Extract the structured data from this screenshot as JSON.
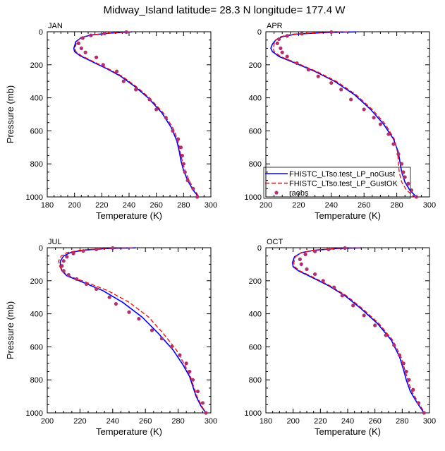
{
  "title": "Midway_Island  latitude= 28.3 N longitude= 177.4 W",
  "chart_data": [
    {
      "type": "line",
      "panel": "JAN",
      "xlabel": "Temperature (K)",
      "ylabel": "Pressure (mb)",
      "xlim": [
        180,
        300
      ],
      "ylim": [
        1000,
        0
      ],
      "xticks": [
        180,
        200,
        220,
        240,
        260,
        280,
        300
      ],
      "yticks": [
        0,
        200,
        400,
        600,
        800,
        1000
      ],
      "series": [
        {
          "name": "FHISTC_LTso.test_LP_noGust",
          "style": "solid",
          "color": "#0000ff",
          "x": [
            242,
            226,
            212,
            205,
            201,
            199.5,
            200,
            204,
            214,
            224,
            234,
            244,
            254,
            264,
            271,
            275,
            277,
            278,
            280,
            283,
            287,
            291
          ],
          "y": [
            1,
            8,
            20,
            35,
            60,
            100,
            120,
            145,
            185,
            225,
            270,
            330,
            400,
            490,
            580,
            660,
            730,
            780,
            840,
            900,
            960,
            1000
          ]
        },
        {
          "name": "FHISTC_LTso.test_LP_GustOK",
          "style": "dashed",
          "color": "#ff0000",
          "x": [
            241,
            225,
            211,
            205,
            201.5,
            200.5,
            201,
            205,
            215,
            225,
            235,
            245,
            255,
            265,
            272,
            276,
            277.5,
            279,
            281,
            284,
            288,
            291.5
          ],
          "y": [
            1,
            8,
            20,
            35,
            60,
            100,
            120,
            145,
            185,
            225,
            270,
            330,
            400,
            490,
            580,
            660,
            730,
            780,
            840,
            900,
            960,
            1000
          ]
        },
        {
          "name": "raobs",
          "style": "markers",
          "color": "#b03070",
          "x": [
            238,
            222,
            212,
            206,
            203,
            205,
            208,
            216,
            221,
            231,
            236,
            245,
            255,
            260,
            267,
            272,
            276,
            278,
            279,
            280,
            281,
            283,
            287,
            290
          ],
          "y": [
            2,
            10,
            22,
            38,
            70,
            100,
            125,
            155,
            200,
            240,
            300,
            350,
            410,
            470,
            520,
            600,
            650,
            700,
            750,
            800,
            850,
            900,
            950,
            1000
          ]
        }
      ]
    },
    {
      "type": "line",
      "panel": "APR",
      "xlabel": "Temperature (K)",
      "ylabel": "",
      "xlim": [
        200,
        300
      ],
      "ylim": [
        1000,
        0
      ],
      "xticks": [
        200,
        220,
        240,
        260,
        280,
        300
      ],
      "yticks": [
        0,
        200,
        400,
        600,
        800,
        1000
      ],
      "legend": {
        "position": "lower-right",
        "entries": [
          "FHISTC_LTso.test_LP_noGust",
          "FHISTC_LTso.test_LP_GustOK",
          "raobs"
        ]
      },
      "series": [
        {
          "name": "FHISTC_LTso.test_LP_noGust",
          "style": "solid",
          "color": "#0000ff",
          "x": [
            255,
            235,
            218,
            210,
            206,
            204,
            203,
            204,
            208,
            218,
            230,
            242,
            254,
            264,
            272,
            278,
            281,
            282,
            283,
            285,
            288,
            292
          ],
          "y": [
            1,
            5,
            15,
            30,
            50,
            75,
            100,
            120,
            150,
            190,
            240,
            300,
            380,
            470,
            560,
            650,
            730,
            790,
            850,
            910,
            960,
            1000
          ]
        },
        {
          "name": "FHISTC_LTso.test_LP_GustOK",
          "style": "dashed",
          "color": "#ff0000",
          "x": [
            250,
            232,
            216,
            209,
            206,
            205,
            204.5,
            205,
            209,
            219,
            231,
            243,
            255,
            265,
            273,
            278.5,
            280.5,
            281,
            281.5,
            283,
            286,
            291
          ],
          "y": [
            1,
            5,
            15,
            30,
            50,
            75,
            100,
            120,
            150,
            190,
            240,
            300,
            380,
            470,
            560,
            650,
            730,
            790,
            850,
            910,
            960,
            1000
          ]
        },
        {
          "name": "raobs",
          "style": "markers",
          "color": "#b03070",
          "x": [
            240,
            222,
            213,
            208,
            207,
            209,
            210,
            213,
            219,
            226,
            232,
            240,
            246,
            252,
            260,
            266,
            270,
            275,
            278,
            281,
            283,
            284,
            285,
            287,
            289,
            292
          ],
          "y": [
            2,
            12,
            25,
            45,
            70,
            100,
            125,
            150,
            190,
            230,
            270,
            310,
            350,
            410,
            470,
            520,
            560,
            620,
            680,
            740,
            800,
            850,
            880,
            920,
            960,
            1000
          ]
        }
      ]
    },
    {
      "type": "line",
      "panel": "JUL",
      "xlabel": "Temperature (K)",
      "ylabel": "Pressure (mb)",
      "xlim": [
        200,
        300
      ],
      "ylim": [
        1000,
        0
      ],
      "xticks": [
        200,
        220,
        240,
        260,
        280,
        300
      ],
      "yticks": [
        0,
        200,
        400,
        600,
        800,
        1000
      ],
      "series": [
        {
          "name": "FHISTC_LTso.test_LP_noGust",
          "style": "solid",
          "color": "#0000ff",
          "x": [
            254,
            236,
            222,
            214,
            210,
            208,
            208,
            209,
            212,
            222,
            234,
            246,
            258,
            268,
            277,
            283,
            287,
            289,
            291,
            294,
            297
          ],
          "y": [
            1,
            5,
            15,
            30,
            50,
            80,
            110,
            140,
            170,
            210,
            260,
            330,
            420,
            520,
            620,
            710,
            780,
            840,
            900,
            960,
            1000
          ]
        },
        {
          "name": "FHISTC_LTso.test_LP_GustOK",
          "style": "dashed",
          "color": "#ff0000",
          "x": [
            252,
            234,
            220,
            212,
            208.5,
            207,
            207.5,
            209,
            213,
            224,
            237,
            250,
            262,
            271,
            279,
            284,
            287.5,
            289.5,
            291.5,
            294.5,
            297
          ],
          "y": [
            1,
            5,
            15,
            30,
            50,
            80,
            110,
            140,
            170,
            210,
            260,
            330,
            420,
            520,
            620,
            710,
            780,
            840,
            900,
            960,
            1000
          ]
        },
        {
          "name": "raobs",
          "style": "markers",
          "color": "#b03070",
          "x": [
            240,
            230,
            222,
            216,
            212,
            210,
            209,
            210,
            213,
            218,
            224,
            230,
            238,
            242,
            250,
            256,
            264,
            270,
            276,
            281,
            285,
            287,
            289,
            292,
            295,
            297
          ],
          "y": [
            2,
            10,
            20,
            35,
            55,
            80,
            110,
            140,
            165,
            190,
            220,
            250,
            300,
            340,
            390,
            430,
            500,
            550,
            600,
            650,
            700,
            750,
            800,
            870,
            940,
            1000
          ]
        }
      ]
    },
    {
      "type": "line",
      "panel": "OCT",
      "xlabel": "Temperature (K)",
      "ylabel": "",
      "xlim": [
        180,
        300
      ],
      "ylim": [
        1000,
        0
      ],
      "xticks": [
        180,
        200,
        220,
        240,
        260,
        280,
        300
      ],
      "yticks": [
        0,
        200,
        400,
        600,
        800,
        1000
      ],
      "series": [
        {
          "name": "FHISTC_LTso.test_LP_noGust",
          "style": "solid",
          "color": "#0000ff",
          "x": [
            250,
            232,
            216,
            206,
            201,
            199.5,
            200,
            204,
            214,
            226,
            238,
            250,
            262,
            272,
            278,
            281,
            283,
            286,
            291,
            296
          ],
          "y": [
            1,
            5,
            15,
            30,
            55,
            90,
            115,
            140,
            180,
            230,
            290,
            370,
            460,
            560,
            660,
            740,
            800,
            870,
            940,
            1000
          ]
        },
        {
          "name": "FHISTC_LTso.test_LP_GustOK",
          "style": "dashed",
          "color": "#ff0000",
          "x": [
            249,
            231,
            215,
            206,
            201.5,
            200.5,
            201,
            205,
            215,
            227,
            239,
            251,
            263,
            273,
            279,
            282,
            284,
            287,
            292,
            296.5
          ],
          "y": [
            1,
            5,
            15,
            30,
            55,
            90,
            115,
            140,
            180,
            230,
            290,
            370,
            460,
            560,
            660,
            740,
            800,
            870,
            940,
            1000
          ]
        },
        {
          "name": "raobs",
          "style": "markers",
          "color": "#b03070",
          "x": [
            238,
            226,
            216,
            209,
            205,
            206,
            210,
            216,
            222,
            230,
            236,
            244,
            252,
            260,
            268,
            274,
            278,
            281,
            283,
            285,
            288,
            292,
            296
          ],
          "y": [
            2,
            10,
            22,
            40,
            70,
            100,
            130,
            160,
            200,
            240,
            290,
            350,
            410,
            470,
            530,
            590,
            650,
            700,
            750,
            800,
            860,
            940,
            1000
          ]
        }
      ]
    }
  ]
}
